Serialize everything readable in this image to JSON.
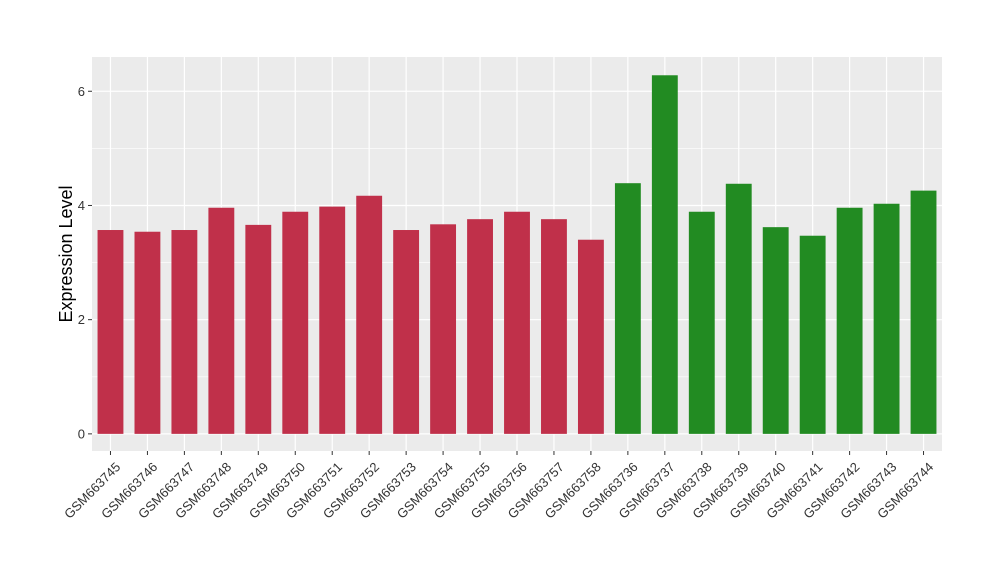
{
  "chart_data": {
    "type": "bar",
    "title": "",
    "xlabel": "",
    "ylabel": "Expression Level",
    "ylim": [
      -0.3,
      6.6
    ],
    "yticks": [
      0,
      2,
      4,
      6
    ],
    "grid": true,
    "categories": [
      "GSM663745",
      "GSM663746",
      "GSM663747",
      "GSM663748",
      "GSM663749",
      "GSM663750",
      "GSM663751",
      "GSM663752",
      "GSM663753",
      "GSM663754",
      "GSM663755",
      "GSM663756",
      "GSM663757",
      "GSM663758",
      "GSM663736",
      "GSM663737",
      "GSM663738",
      "GSM663739",
      "GSM663740",
      "GSM663741",
      "GSM663742",
      "GSM663743",
      "GSM663744"
    ],
    "values": [
      3.57,
      3.54,
      3.57,
      3.96,
      3.66,
      3.89,
      3.98,
      4.17,
      3.57,
      3.67,
      3.76,
      3.89,
      3.76,
      3.4,
      4.39,
      6.28,
      3.89,
      4.38,
      3.62,
      3.47,
      3.96,
      4.03,
      4.26
    ],
    "bar_colors": [
      "#c0304a",
      "#c0304a",
      "#c0304a",
      "#c0304a",
      "#c0304a",
      "#c0304a",
      "#c0304a",
      "#c0304a",
      "#c0304a",
      "#c0304a",
      "#c0304a",
      "#c0304a",
      "#c0304a",
      "#c0304a",
      "#228b22",
      "#228b22",
      "#228b22",
      "#228b22",
      "#228b22",
      "#228b22",
      "#228b22",
      "#228b22",
      "#228b22"
    ],
    "panel_background": "#ebebeb",
    "gridline_color": "#ffffff"
  }
}
